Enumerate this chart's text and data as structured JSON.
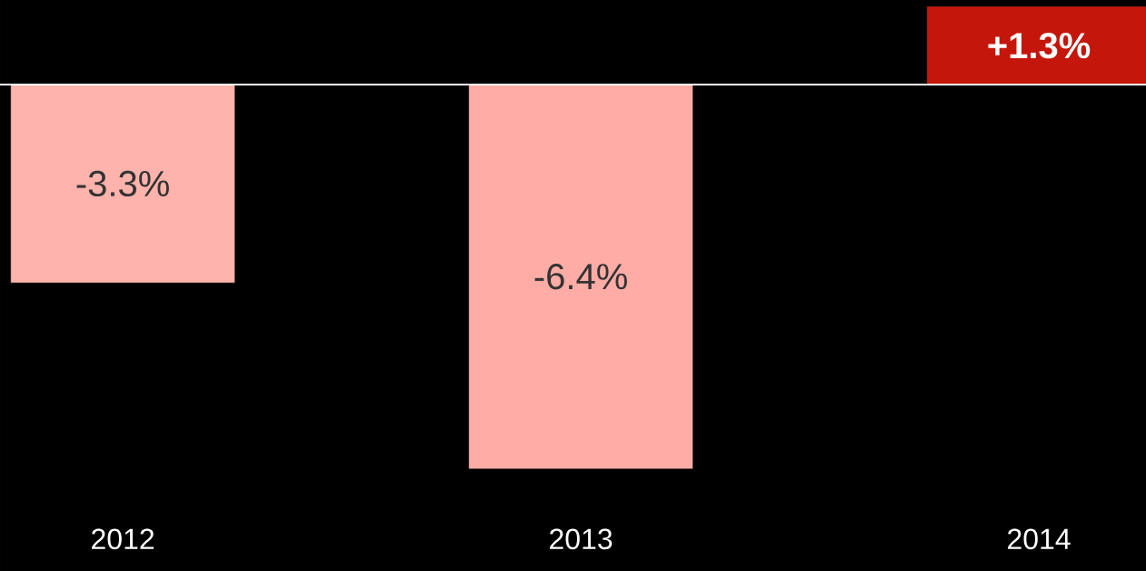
{
  "chart_data": {
    "type": "bar",
    "categories": [
      "2012",
      "2013",
      "2014"
    ],
    "values": [
      -3.3,
      -6.4,
      1.3
    ],
    "value_labels": [
      "-3.3%",
      "-6.4%",
      "+1.3%"
    ],
    "colors": [
      "#ffb3ac",
      "#ffaca6",
      "#c4160b"
    ]
  }
}
